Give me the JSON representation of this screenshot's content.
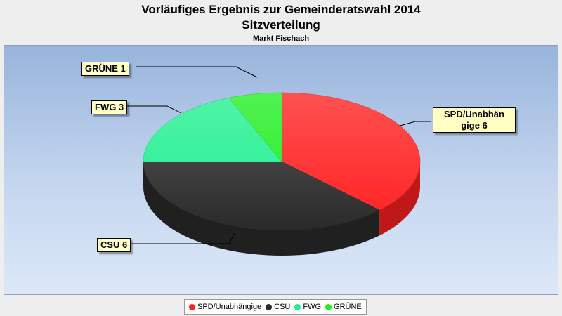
{
  "chart_data": {
    "type": "pie",
    "title": "Vorläufiges Ergebnis zur Gemeinderatswahl 2014",
    "subtitle": "Sitzverteilung",
    "caption": "Markt Fischach",
    "legend_position": "bottom",
    "slices": [
      {
        "name": "SPD/Unabhängige",
        "label": "SPD/Unabhän gige 6",
        "value": 6,
        "color": "#ff2020"
      },
      {
        "name": "CSU",
        "label": "CSU 6",
        "value": 6,
        "color": "#2a2a2a"
      },
      {
        "name": "FWG",
        "label": "FWG 3",
        "value": 3,
        "color": "#20f090"
      },
      {
        "name": "GRÜNE",
        "label": "GRÜNE 1",
        "value": 1,
        "color": "#20ee20"
      }
    ]
  }
}
